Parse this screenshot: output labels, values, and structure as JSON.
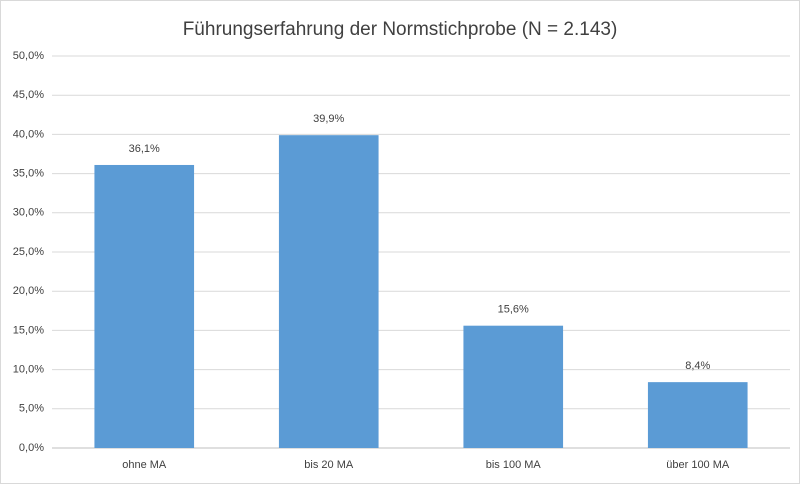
{
  "chart_data": {
    "type": "bar",
    "title": "Führungserfahrung der Normstichprobe (N = 2.143)",
    "categories": [
      "ohne MA",
      "bis 20 MA",
      "bis 100 MA",
      "über 100 MA"
    ],
    "values": [
      36.1,
      39.9,
      15.6,
      8.4
    ],
    "value_labels": [
      "36,1%",
      "39,9%",
      "15,6%",
      "8,4%"
    ],
    "color": "#5b9bd5",
    "ylim": [
      0,
      50
    ],
    "yticks": [
      {
        "value": 0,
        "label": "0,0%"
      },
      {
        "value": 5,
        "label": "5,0%"
      },
      {
        "value": 10,
        "label": "10,0%"
      },
      {
        "value": 15,
        "label": "15,0%"
      },
      {
        "value": 20,
        "label": "20,0%"
      },
      {
        "value": 25,
        "label": "25,0%"
      },
      {
        "value": 30,
        "label": "30,0%"
      },
      {
        "value": 35,
        "label": "35,0%"
      },
      {
        "value": 40,
        "label": "40,0%"
      },
      {
        "value": 45,
        "label": "45,0%"
      },
      {
        "value": 50,
        "label": "50,0%"
      }
    ],
    "grid": true
  }
}
